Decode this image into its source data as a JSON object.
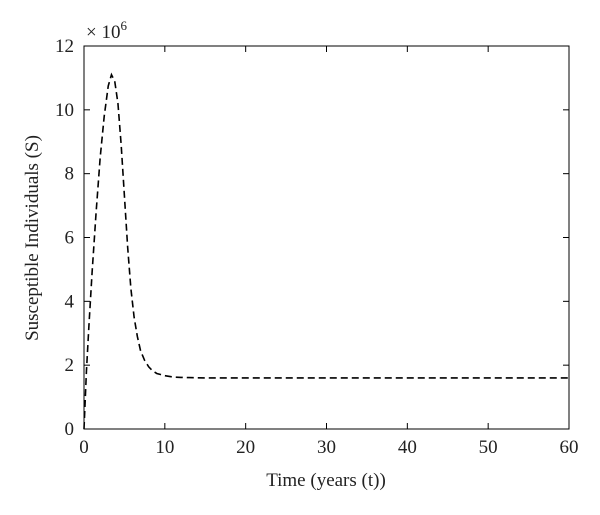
{
  "chart_data": {
    "type": "line",
    "xlabel": "Time (years (t))",
    "ylabel": "Susceptible Individuals (S)",
    "y_multiplier": {
      "prefix": "× 10",
      "exponent": "6"
    },
    "xlim": [
      0,
      60
    ],
    "ylim": [
      0,
      12
    ],
    "xticks": [
      "0",
      "10",
      "20",
      "30",
      "40",
      "50",
      "60"
    ],
    "yticks": [
      "0",
      "2",
      "4",
      "6",
      "8",
      "10",
      "12"
    ],
    "grid": false,
    "series": [
      {
        "line_style": "dashed",
        "color": "#000000",
        "x": [
          0,
          0.3,
          0.6,
          1.0,
          1.5,
          2.0,
          2.5,
          3.0,
          3.4,
          3.8,
          4.2,
          4.6,
          5.0,
          5.4,
          5.8,
          6.2,
          6.6,
          7.0,
          7.5,
          8.0,
          8.5,
          9.0,
          10.0,
          11.0,
          12.0,
          13.0,
          15.0,
          20.0,
          30.0,
          40.0,
          50.0,
          60.0
        ],
        "y": [
          0,
          1.8,
          3.2,
          4.9,
          6.8,
          8.5,
          9.8,
          10.75,
          11.1,
          10.9,
          10.2,
          8.9,
          7.3,
          5.7,
          4.4,
          3.5,
          2.9,
          2.45,
          2.15,
          1.95,
          1.82,
          1.74,
          1.67,
          1.63,
          1.615,
          1.61,
          1.6,
          1.6,
          1.6,
          1.6,
          1.6,
          1.6
        ]
      }
    ]
  }
}
